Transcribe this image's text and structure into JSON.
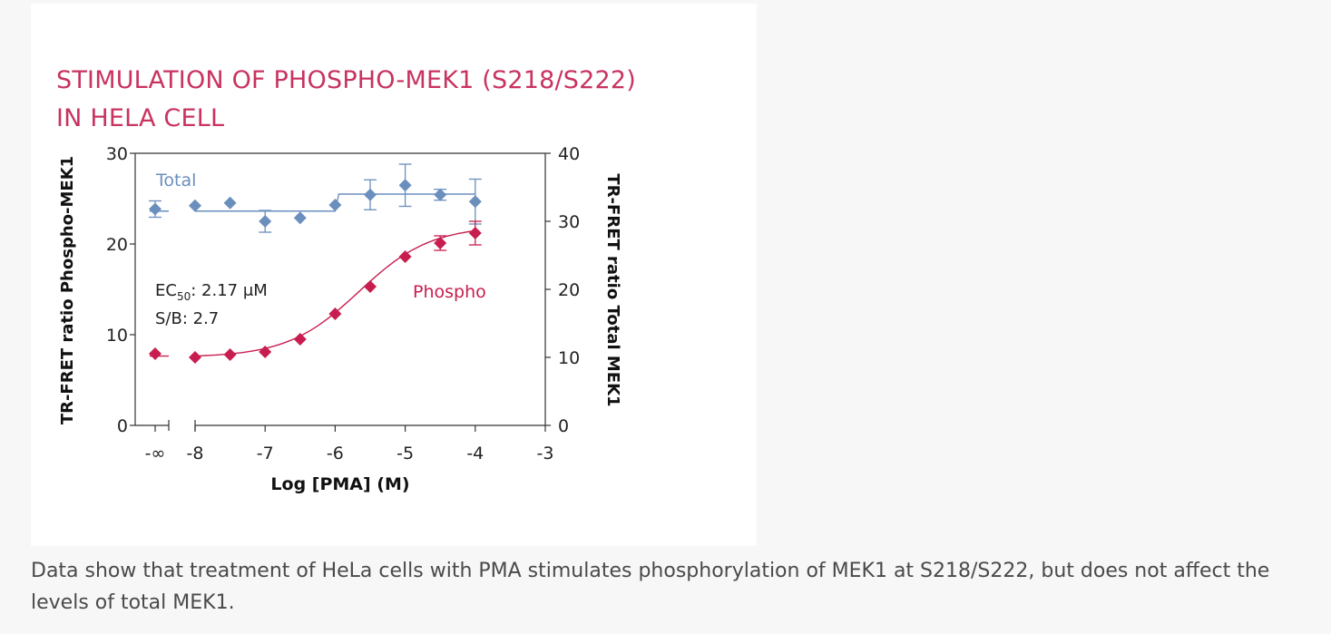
{
  "chart_data": {
    "type": "scatter",
    "title_lines": [
      "STIMULATION OF PHOSPHO-MEK1 (S218/S222)",
      "IN HELA CELL"
    ],
    "xlabel": "Log [PMA] (M)",
    "ylabel_left": "TR-FRET ratio Phospho-MEK1",
    "ylabel_right": "TR-FRET ratio Total MEK1",
    "x_ticks": [
      {
        "value": "-inf",
        "label": "-∞"
      },
      {
        "value": -8,
        "label": "-8"
      },
      {
        "value": -7,
        "label": "-7"
      },
      {
        "value": -6,
        "label": "-6"
      },
      {
        "value": -5,
        "label": "-5"
      },
      {
        "value": -4,
        "label": "-4"
      },
      {
        "value": -3,
        "label": "-3"
      }
    ],
    "ylim_left": [
      0,
      30
    ],
    "ylim_right": [
      0,
      40
    ],
    "y_ticks_left": [
      0,
      10,
      20,
      30
    ],
    "y_ticks_right": [
      0,
      10,
      20,
      30,
      40
    ],
    "axis_break": true,
    "series": [
      {
        "name": "Total",
        "axis": "right",
        "color": "#6a8fbd",
        "marker": "diamond",
        "points": [
          {
            "x": "-inf",
            "y": 31.8,
            "err": 1.2
          },
          {
            "x": -8,
            "y": 32.3,
            "err": 0
          },
          {
            "x": -7.5,
            "y": 32.7,
            "err": 0
          },
          {
            "x": -7,
            "y": 30.0,
            "err": 1.6
          },
          {
            "x": -6.5,
            "y": 30.5,
            "err": 0
          },
          {
            "x": -6,
            "y": 32.4,
            "err": 0
          },
          {
            "x": -5.5,
            "y": 33.9,
            "err": 2.2
          },
          {
            "x": -5,
            "y": 35.3,
            "err": 3.1
          },
          {
            "x": -4.5,
            "y": 33.9,
            "err": 0.8
          },
          {
            "x": -4,
            "y": 32.9,
            "err": 3.3
          }
        ],
        "fit": "step",
        "fit_levels": [
          31.5,
          34.0
        ],
        "fit_step_x": -6
      },
      {
        "name": "Phospho",
        "axis": "left",
        "color": "#c81e4f",
        "marker": "diamond",
        "points": [
          {
            "x": "-inf",
            "y": 7.9,
            "err": 0
          },
          {
            "x": -8,
            "y": 7.5,
            "err": 0
          },
          {
            "x": -7.5,
            "y": 7.8,
            "err": 0
          },
          {
            "x": -7,
            "y": 8.1,
            "err": 0
          },
          {
            "x": -6.5,
            "y": 9.5,
            "err": 0
          },
          {
            "x": -6,
            "y": 12.3,
            "err": 0
          },
          {
            "x": -5.5,
            "y": 15.3,
            "err": 0
          },
          {
            "x": -5,
            "y": 18.6,
            "err": 0
          },
          {
            "x": -4.5,
            "y": 20.1,
            "err": 0.8
          },
          {
            "x": -4,
            "y": 21.2,
            "err": 1.3
          }
        ],
        "fit": "sigmoid",
        "fit_bottom": 7.5,
        "fit_top": 22.0,
        "fit_log_ec50": -5.66,
        "fit_hill": 0.85
      }
    ],
    "annotations": {
      "ec50_prefix": "EC",
      "ec50_sub": "50",
      "ec50_value": ": 2.17 μM",
      "sb_text": "S/B: 2.7"
    }
  },
  "caption": "Data show that treatment of HeLa cells with PMA stimulates phosphorylation of MEK1 at S218/S222, but does not affect the levels of total MEK1."
}
